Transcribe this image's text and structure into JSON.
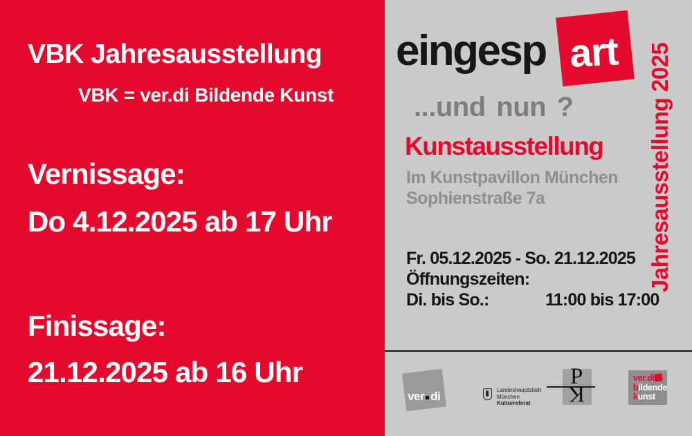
{
  "left_panel": {
    "title": "VBK Jahresausstellung",
    "subtitle": "VBK = ver.di Bildende Kunst",
    "vernissage_label": "Vernissage:",
    "vernissage_date": "Do 4.12.2025 ab 17 Uhr",
    "finissage_label": "Finissage:",
    "finissage_date": "21.12.2025 ab 16 Uhr"
  },
  "right_panel": {
    "logo_text_black": "eingesp",
    "logo_text_accent": "art",
    "tagline": "...und nun ?",
    "event_type": "Kunstausstellung",
    "venue_line1": "Im Kunstpavillon München",
    "venue_line2": "Sophienstraße 7a",
    "dates_line": "Fr. 05.12.2025  - So. 21.12.2025",
    "hours_label": "Öffnungszeiten:",
    "hours_days": "Di. bis So.:",
    "hours_time": "11:00 bis 17:00",
    "vertical_banner": "Jahresausstellung 2025"
  },
  "footer": {
    "verdi_logo": {
      "text_before_dot": "ver",
      "text_after_dot": "di"
    },
    "muenchen_logo": {
      "line1": "Landeshauptstadt",
      "line2": "München",
      "line3": "Kulturreferat"
    },
    "pavillon_logo": {
      "letter_p": "P",
      "letter_k": "K"
    },
    "vbk_logo": {
      "line1": "ver.di",
      "line2_initial": "b",
      "line2_rest": "ildende",
      "line3_initial": "k",
      "line3_rest": "unst"
    }
  },
  "colors": {
    "brand_red": "#e40a2e",
    "panel_gray": "#cacaca",
    "text_gray": "#8e8e8e",
    "text_black": "#161616",
    "white": "#ffffff"
  }
}
